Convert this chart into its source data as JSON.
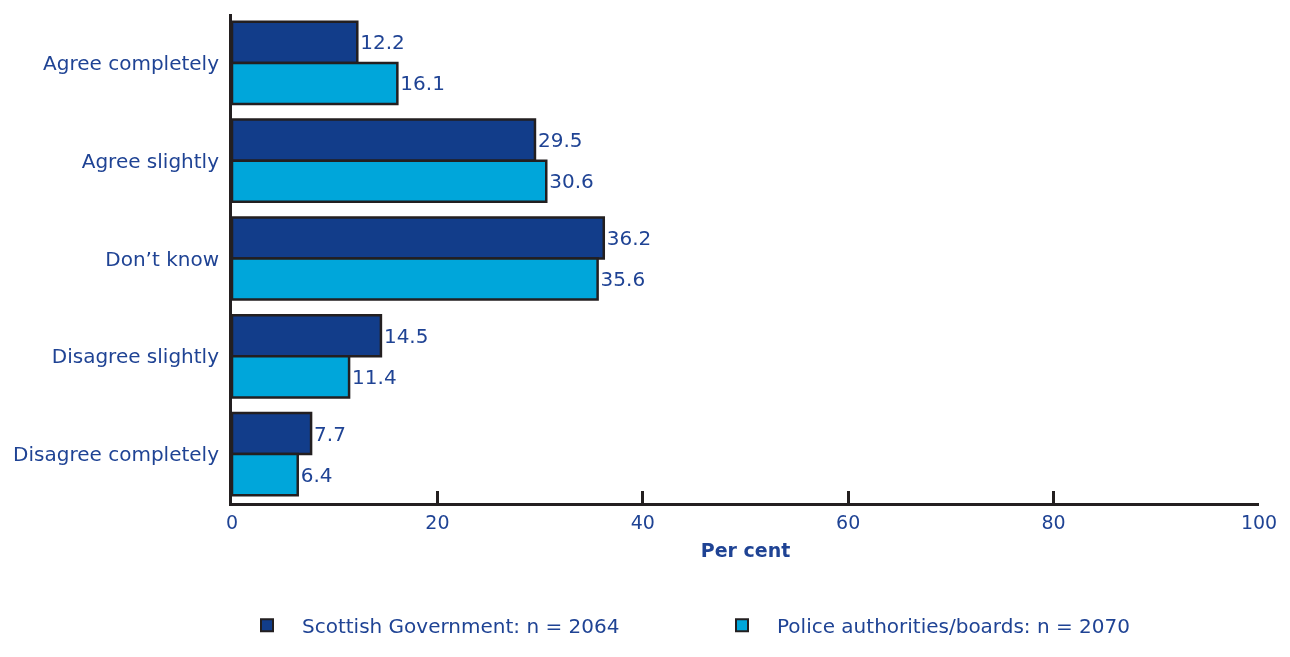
{
  "chart_data": {
    "type": "bar",
    "orientation": "horizontal",
    "xlabel": "Per cent",
    "categories": [
      "Agree completely",
      "Agree slightly",
      "Don’t know",
      "Disagree slightly",
      "Disagree completely"
    ],
    "series": [
      {
        "name": "Scottish Government: n = 2064",
        "color": "#123d8a",
        "values": [
          12.2,
          29.5,
          36.2,
          14.5,
          7.7
        ]
      },
      {
        "name": "Police authorities/boards: n = 2070",
        "color": "#00a6da",
        "values": [
          16.1,
          30.6,
          35.6,
          11.4,
          6.4
        ]
      }
    ],
    "xlim": [
      0,
      100
    ],
    "xticks": [
      0,
      20,
      40,
      60,
      80,
      100
    ],
    "grid": false,
    "legend": "bottom",
    "data_labels": true
  }
}
